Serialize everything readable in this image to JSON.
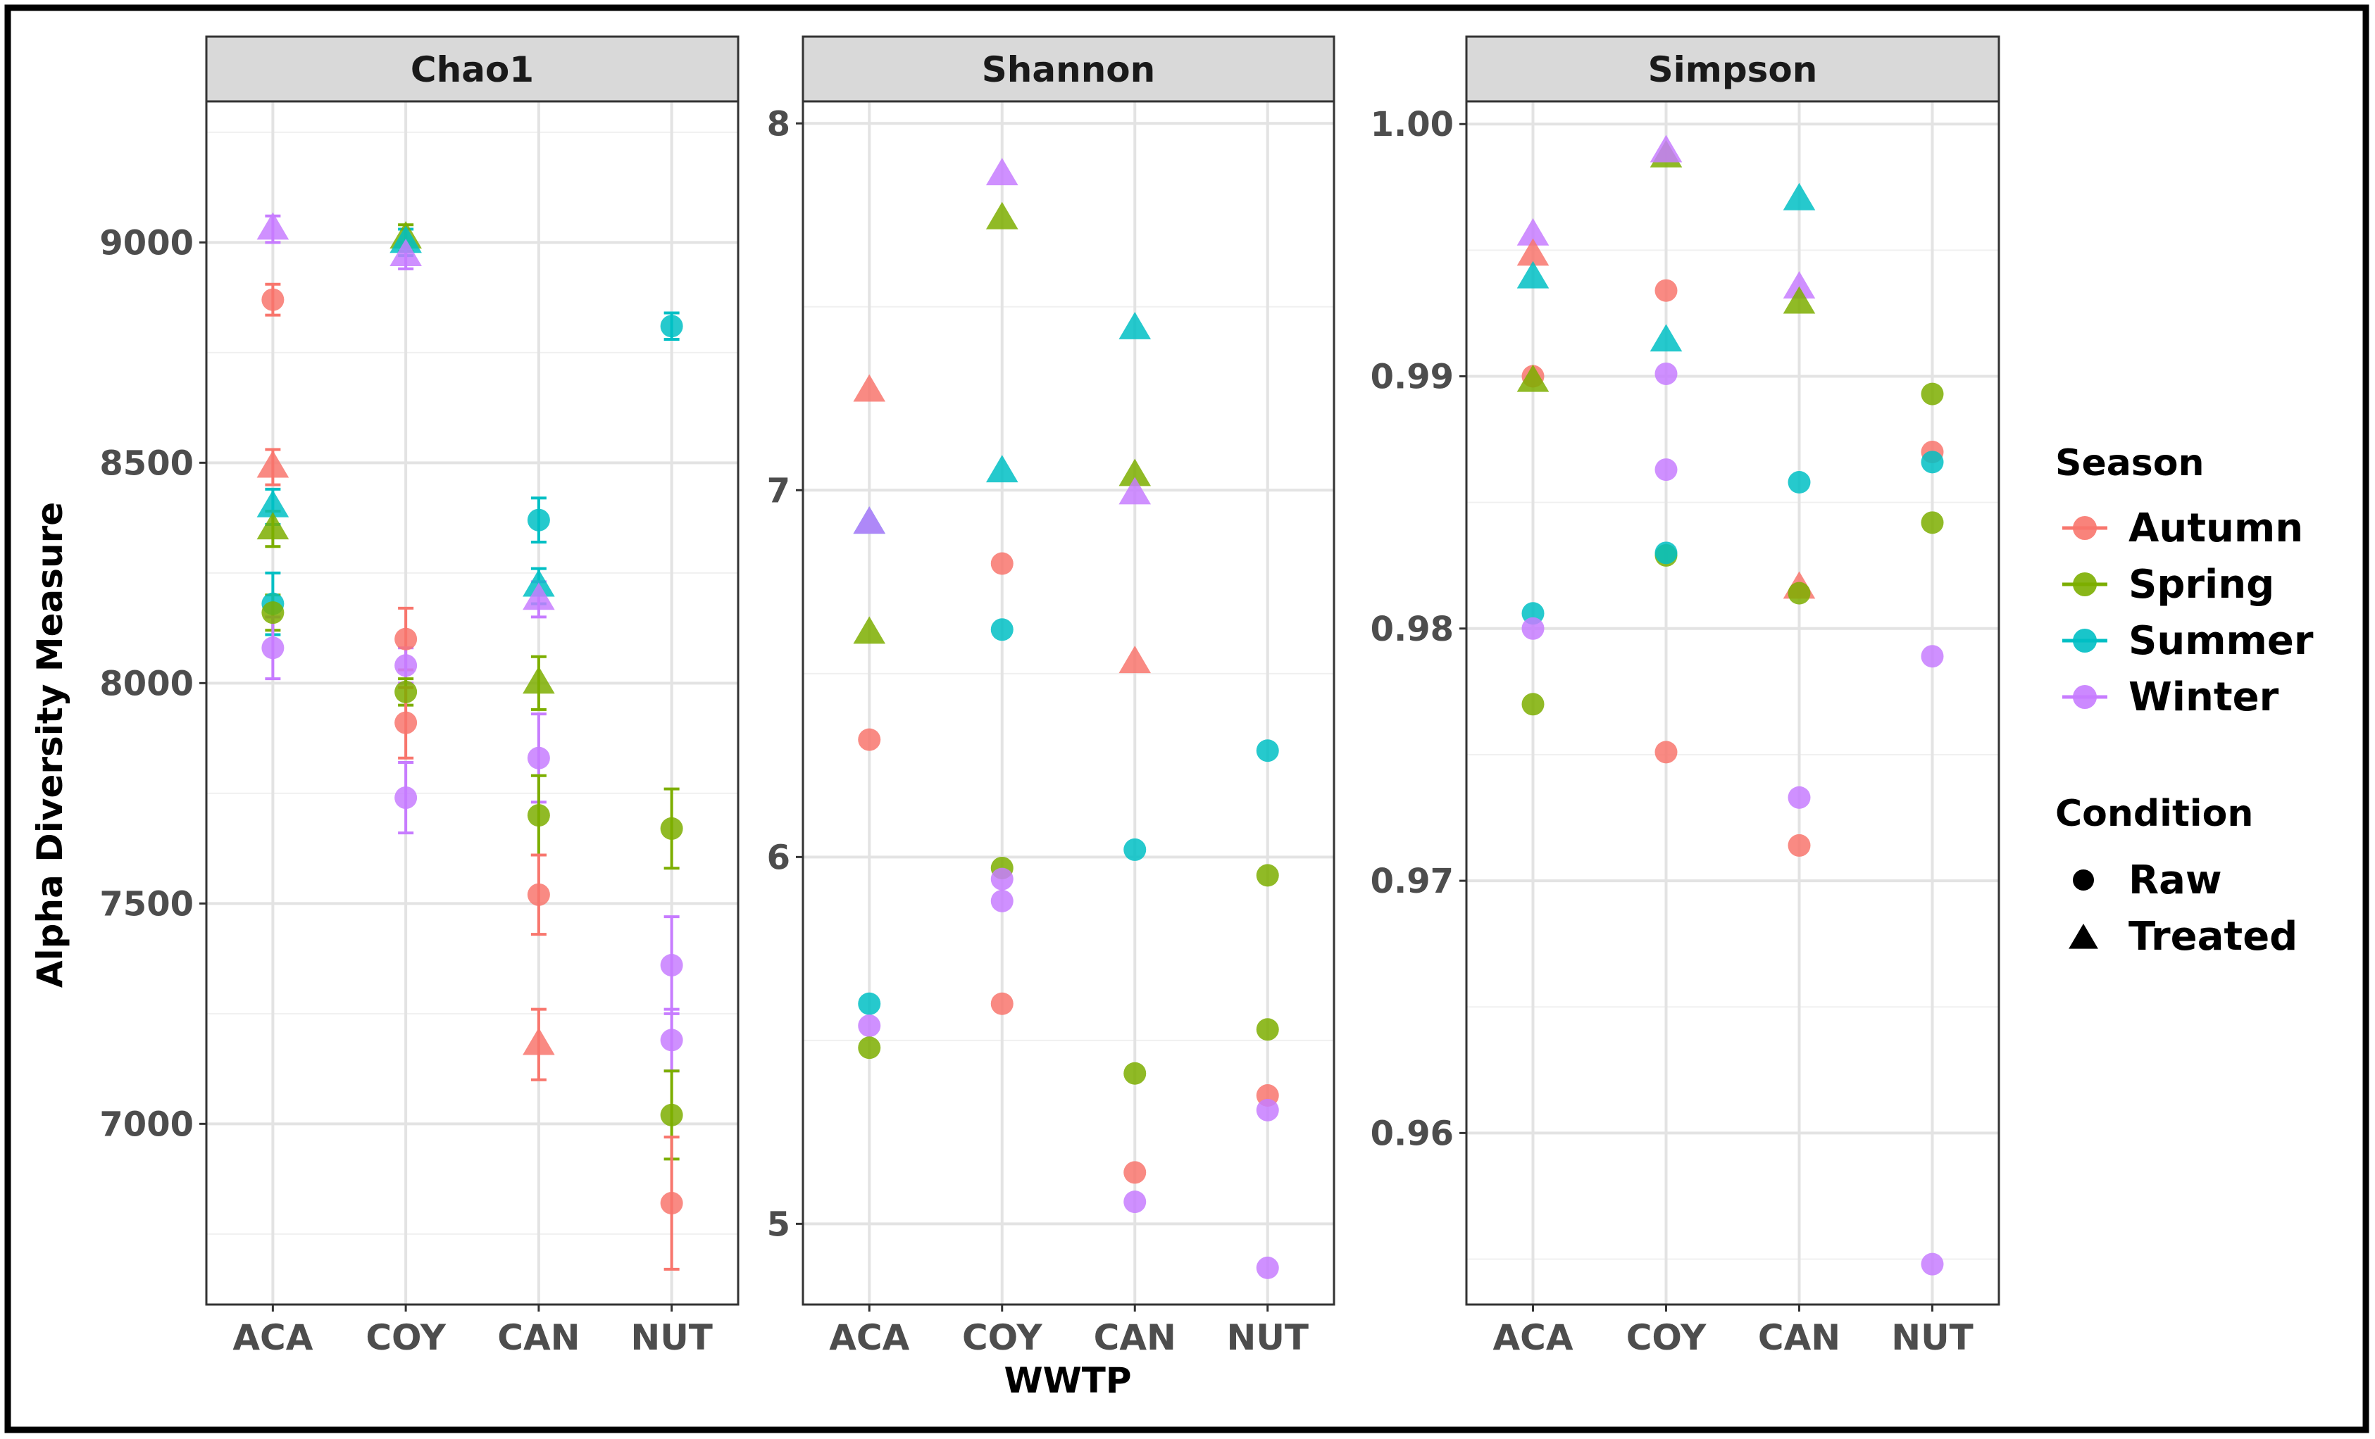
{
  "chart_data": {
    "type": "scatter",
    "ylabel": "Alpha Diversity Measure",
    "xlabel": "WWTP",
    "categories": [
      "ACA",
      "COY",
      "CAN",
      "NUT"
    ],
    "colors": {
      "Autumn": "#F8766D",
      "Spring": "#7CAE00",
      "Summer": "#00BFC4",
      "Winter": "#C77CFF"
    },
    "legend": {
      "season_title": "Season",
      "seasons": [
        "Autumn",
        "Spring",
        "Summer",
        "Winter"
      ],
      "condition_title": "Condition",
      "conditions": [
        "Raw",
        "Treated"
      ],
      "position": "right"
    },
    "panels": [
      {
        "title": "Chao1",
        "ylim": [
          6590,
          9320
        ],
        "ticks": [
          7000,
          7500,
          8000,
          8500,
          9000
        ],
        "minor": [
          6750,
          7250,
          7750,
          8250,
          8750,
          9250
        ],
        "decimals": 0,
        "show_xlabel": false,
        "points": [
          {
            "wwtp": "ACA",
            "season": "Winter",
            "condition": "Treated",
            "value": 9030,
            "err": 30
          },
          {
            "wwtp": "ACA",
            "season": "Autumn",
            "condition": "Raw",
            "value": 8870,
            "err": 35
          },
          {
            "wwtp": "ACA",
            "season": "Autumn",
            "condition": "Treated",
            "value": 8490,
            "err": 40
          },
          {
            "wwtp": "ACA",
            "season": "Summer",
            "condition": "Treated",
            "value": 8400,
            "err": 40
          },
          {
            "wwtp": "ACA",
            "season": "Spring",
            "condition": "Treated",
            "value": 8350,
            "err": 40
          },
          {
            "wwtp": "ACA",
            "season": "Summer",
            "condition": "Raw",
            "value": 8180,
            "err": 70
          },
          {
            "wwtp": "ACA",
            "season": "Spring",
            "condition": "Raw",
            "value": 8160,
            "err": 40
          },
          {
            "wwtp": "ACA",
            "season": "Winter",
            "condition": "Raw",
            "value": 8080,
            "err": 70
          },
          {
            "wwtp": "COY",
            "season": "Spring",
            "condition": "Treated",
            "value": 9010,
            "err": 30
          },
          {
            "wwtp": "COY",
            "season": "Summer",
            "condition": "Treated",
            "value": 9000,
            "err": 30
          },
          {
            "wwtp": "COY",
            "season": "Winter",
            "condition": "Treated",
            "value": 8970,
            "err": 30
          },
          {
            "wwtp": "COY",
            "season": "Autumn",
            "condition": "Raw",
            "value": 8100,
            "err": 70
          },
          {
            "wwtp": "COY",
            "season": "Winter",
            "condition": "Raw",
            "value": 8040,
            "err": 40
          },
          {
            "wwtp": "COY",
            "season": "Spring",
            "condition": "Raw",
            "value": 7980,
            "err": 30
          },
          {
            "wwtp": "COY",
            "season": "Autumn",
            "condition": "Raw",
            "value": 7910,
            "err": 80
          },
          {
            "wwtp": "COY",
            "season": "Winter",
            "condition": "Raw",
            "value": 7740,
            "err": 80
          },
          {
            "wwtp": "CAN",
            "season": "Summer",
            "condition": "Raw",
            "value": 8370,
            "err": 50
          },
          {
            "wwtp": "CAN",
            "season": "Summer",
            "condition": "Treated",
            "value": 8220,
            "err": 40
          },
          {
            "wwtp": "CAN",
            "season": "Winter",
            "condition": "Treated",
            "value": 8190,
            "err": 40
          },
          {
            "wwtp": "CAN",
            "season": "Spring",
            "condition": "Treated",
            "value": 8000,
            "err": 60
          },
          {
            "wwtp": "CAN",
            "season": "Winter",
            "condition": "Raw",
            "value": 7830,
            "err": 100
          },
          {
            "wwtp": "CAN",
            "season": "Spring",
            "condition": "Raw",
            "value": 7700,
            "err": 90
          },
          {
            "wwtp": "CAN",
            "season": "Autumn",
            "condition": "Raw",
            "value": 7520,
            "err": 90
          },
          {
            "wwtp": "CAN",
            "season": "Autumn",
            "condition": "Treated",
            "value": 7180,
            "err": 80
          },
          {
            "wwtp": "NUT",
            "season": "Summer",
            "condition": "Raw",
            "value": 8810,
            "err": 30
          },
          {
            "wwtp": "NUT",
            "season": "Spring",
            "condition": "Raw",
            "value": 7670,
            "err": 90
          },
          {
            "wwtp": "NUT",
            "season": "Winter",
            "condition": "Raw",
            "value": 7360,
            "err": 110
          },
          {
            "wwtp": "NUT",
            "season": "Winter",
            "condition": "Raw",
            "value": 7190,
            "err": 70
          },
          {
            "wwtp": "NUT",
            "season": "Spring",
            "condition": "Raw",
            "value": 7020,
            "err": 100
          },
          {
            "wwtp": "NUT",
            "season": "Autumn",
            "condition": "Raw",
            "value": 6820,
            "err": 150
          }
        ]
      },
      {
        "title": "Shannon",
        "ylim": [
          4.78,
          8.06
        ],
        "ticks": [
          5,
          6,
          7,
          8
        ],
        "minor": [
          5.5,
          6.5,
          7.5
        ],
        "decimals": 0,
        "show_xlabel": true,
        "points": [
          {
            "wwtp": "ACA",
            "season": "Autumn",
            "condition": "Treated",
            "value": 7.27
          },
          {
            "wwtp": "ACA",
            "season": "Summer",
            "condition": "Treated",
            "value": 6.91
          },
          {
            "wwtp": "ACA",
            "season": "Winter",
            "condition": "Treated",
            "value": 6.91
          },
          {
            "wwtp": "ACA",
            "season": "Spring",
            "condition": "Treated",
            "value": 6.61
          },
          {
            "wwtp": "ACA",
            "season": "Autumn",
            "condition": "Raw",
            "value": 6.32
          },
          {
            "wwtp": "ACA",
            "season": "Summer",
            "condition": "Raw",
            "value": 5.6
          },
          {
            "wwtp": "ACA",
            "season": "Winter",
            "condition": "Raw",
            "value": 5.54
          },
          {
            "wwtp": "ACA",
            "season": "Spring",
            "condition": "Raw",
            "value": 5.48
          },
          {
            "wwtp": "COY",
            "season": "Winter",
            "condition": "Treated",
            "value": 7.86
          },
          {
            "wwtp": "COY",
            "season": "Spring",
            "condition": "Treated",
            "value": 7.74
          },
          {
            "wwtp": "COY",
            "season": "Summer",
            "condition": "Treated",
            "value": 7.05
          },
          {
            "wwtp": "COY",
            "season": "Autumn",
            "condition": "Raw",
            "value": 6.8
          },
          {
            "wwtp": "COY",
            "season": "Summer",
            "condition": "Raw",
            "value": 6.62
          },
          {
            "wwtp": "COY",
            "season": "Spring",
            "condition": "Raw",
            "value": 5.97
          },
          {
            "wwtp": "COY",
            "season": "Winter",
            "condition": "Raw",
            "value": 5.94
          },
          {
            "wwtp": "COY",
            "season": "Winter",
            "condition": "Raw",
            "value": 5.88
          },
          {
            "wwtp": "COY",
            "season": "Autumn",
            "condition": "Raw",
            "value": 5.6
          },
          {
            "wwtp": "CAN",
            "season": "Summer",
            "condition": "Treated",
            "value": 7.44
          },
          {
            "wwtp": "CAN",
            "season": "Spring",
            "condition": "Treated",
            "value": 7.04
          },
          {
            "wwtp": "CAN",
            "season": "Winter",
            "condition": "Treated",
            "value": 6.99
          },
          {
            "wwtp": "CAN",
            "season": "Autumn",
            "condition": "Treated",
            "value": 6.53
          },
          {
            "wwtp": "CAN",
            "season": "Summer",
            "condition": "Raw",
            "value": 6.02
          },
          {
            "wwtp": "CAN",
            "season": "Spring",
            "condition": "Raw",
            "value": 5.41
          },
          {
            "wwtp": "CAN",
            "season": "Autumn",
            "condition": "Raw",
            "value": 5.14
          },
          {
            "wwtp": "CAN",
            "season": "Winter",
            "condition": "Raw",
            "value": 5.06
          },
          {
            "wwtp": "NUT",
            "season": "Summer",
            "condition": "Raw",
            "value": 6.29
          },
          {
            "wwtp": "NUT",
            "season": "Spring",
            "condition": "Raw",
            "value": 5.95
          },
          {
            "wwtp": "NUT",
            "season": "Spring",
            "condition": "Raw",
            "value": 5.53
          },
          {
            "wwtp": "NUT",
            "season": "Autumn",
            "condition": "Raw",
            "value": 5.35
          },
          {
            "wwtp": "NUT",
            "season": "Winter",
            "condition": "Raw",
            "value": 5.31
          },
          {
            "wwtp": "NUT",
            "season": "Winter",
            "condition": "Raw",
            "value": 4.88
          }
        ]
      },
      {
        "title": "Simpson",
        "ylim": [
          0.9532,
          1.0009
        ],
        "ticks": [
          0.96,
          0.97,
          0.98,
          0.99,
          1.0
        ],
        "minor": [
          0.955,
          0.965,
          0.975,
          0.985,
          0.995
        ],
        "decimals": 2,
        "show_xlabel": false,
        "points": [
          {
            "wwtp": "ACA",
            "season": "Winter",
            "condition": "Treated",
            "value": 0.9956
          },
          {
            "wwtp": "ACA",
            "season": "Autumn",
            "condition": "Treated",
            "value": 0.9948
          },
          {
            "wwtp": "ACA",
            "season": "Summer",
            "condition": "Treated",
            "value": 0.9939
          },
          {
            "wwtp": "ACA",
            "season": "Autumn",
            "condition": "Raw",
            "value": 0.99
          },
          {
            "wwtp": "ACA",
            "season": "Spring",
            "condition": "Treated",
            "value": 0.9898
          },
          {
            "wwtp": "ACA",
            "season": "Summer",
            "condition": "Raw",
            "value": 0.9806
          },
          {
            "wwtp": "ACA",
            "season": "Winter",
            "condition": "Raw",
            "value": 0.98
          },
          {
            "wwtp": "ACA",
            "season": "Spring",
            "condition": "Raw",
            "value": 0.977
          },
          {
            "wwtp": "COY",
            "season": "Spring",
            "condition": "Treated",
            "value": 0.9987
          },
          {
            "wwtp": "COY",
            "season": "Winter",
            "condition": "Treated",
            "value": 0.9989
          },
          {
            "wwtp": "COY",
            "season": "Autumn",
            "condition": "Raw",
            "value": 0.9934
          },
          {
            "wwtp": "COY",
            "season": "Summer",
            "condition": "Treated",
            "value": 0.9914
          },
          {
            "wwtp": "COY",
            "season": "Winter",
            "condition": "Raw",
            "value": 0.9901
          },
          {
            "wwtp": "COY",
            "season": "Winter",
            "condition": "Raw",
            "value": 0.9863
          },
          {
            "wwtp": "COY",
            "season": "Spring",
            "condition": "Raw",
            "value": 0.9829
          },
          {
            "wwtp": "COY",
            "season": "Summer",
            "condition": "Raw",
            "value": 0.983
          },
          {
            "wwtp": "COY",
            "season": "Autumn",
            "condition": "Raw",
            "value": 0.9751
          },
          {
            "wwtp": "CAN",
            "season": "Summer",
            "condition": "Treated",
            "value": 0.997
          },
          {
            "wwtp": "CAN",
            "season": "Winter",
            "condition": "Treated",
            "value": 0.9935
          },
          {
            "wwtp": "CAN",
            "season": "Spring",
            "condition": "Treated",
            "value": 0.9929
          },
          {
            "wwtp": "CAN",
            "season": "Summer",
            "condition": "Raw",
            "value": 0.9858
          },
          {
            "wwtp": "CAN",
            "season": "Autumn",
            "condition": "Treated",
            "value": 0.9816
          },
          {
            "wwtp": "CAN",
            "season": "Spring",
            "condition": "Raw",
            "value": 0.9814
          },
          {
            "wwtp": "CAN",
            "season": "Winter",
            "condition": "Raw",
            "value": 0.9733
          },
          {
            "wwtp": "CAN",
            "season": "Autumn",
            "condition": "Raw",
            "value": 0.9714
          },
          {
            "wwtp": "NUT",
            "season": "Spring",
            "condition": "Raw",
            "value": 0.9893
          },
          {
            "wwtp": "NUT",
            "season": "Autumn",
            "condition": "Raw",
            "value": 0.987
          },
          {
            "wwtp": "NUT",
            "season": "Summer",
            "condition": "Raw",
            "value": 0.9866
          },
          {
            "wwtp": "NUT",
            "season": "Spring",
            "condition": "Raw",
            "value": 0.9842
          },
          {
            "wwtp": "NUT",
            "season": "Winter",
            "condition": "Raw",
            "value": 0.9789
          },
          {
            "wwtp": "NUT",
            "season": "Winter",
            "condition": "Raw",
            "value": 0.9548
          }
        ]
      }
    ]
  }
}
